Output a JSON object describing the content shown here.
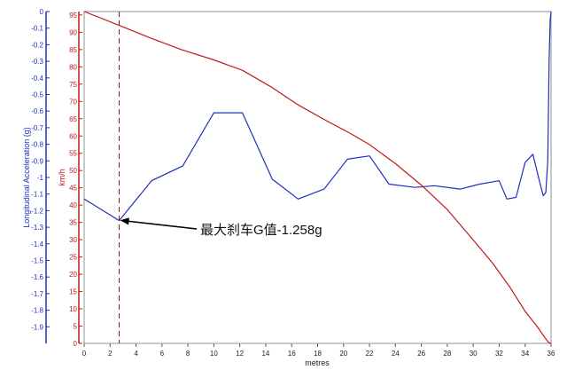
{
  "chart_data": {
    "type": "line",
    "xlabel": "metres",
    "xlim": [
      0,
      36
    ],
    "x_ticks": [
      "0",
      "2",
      "4",
      "6",
      "8",
      "10",
      "12",
      "14",
      "16",
      "18",
      "20",
      "22",
      "24",
      "26",
      "28",
      "30",
      "32",
      "34",
      "36"
    ],
    "y_left": {
      "label": "Longitudinal Acceleration (g)",
      "lim": [
        -2.0,
        0
      ],
      "ticks": [
        "0",
        "-0.1",
        "-0.2",
        "-0.3",
        "-0.4",
        "-0.5",
        "-0.6",
        "-0.7",
        "-0.8",
        "-0.9",
        "-1",
        "-1.1",
        "-1.2",
        "-1.3",
        "-1.4",
        "-1.5",
        "-1.6",
        "-1.7",
        "-1.8",
        "-1.9"
      ],
      "color": "#1f2fbf"
    },
    "y_right": {
      "label": "km/h",
      "lim": [
        0,
        96
      ],
      "ticks": [
        "95",
        "90",
        "85",
        "80",
        "75",
        "70",
        "65",
        "60",
        "55",
        "50",
        "45",
        "40",
        "35",
        "30",
        "25",
        "20",
        "15",
        "10",
        "5",
        "0"
      ],
      "color": "#c0191b"
    },
    "series": [
      {
        "axis": "left",
        "color": "#1f2fbf",
        "x": [
          0,
          2.7,
          5.2,
          7.6,
          10.0,
          12.2,
          14.5,
          16.5,
          18.5,
          20.3,
          22.0,
          23.5,
          25.5,
          27.0,
          29.0,
          30.5,
          32.0,
          32.6,
          33.3,
          34.0,
          34.6,
          35.1,
          35.4,
          35.6,
          35.75,
          35.85,
          35.93,
          36.0
        ],
        "y": [
          -1.13,
          -1.26,
          -1.02,
          -0.93,
          -0.61,
          -0.61,
          -1.01,
          -1.13,
          -1.07,
          -0.89,
          -0.87,
          -1.04,
          -1.06,
          -1.05,
          -1.07,
          -1.04,
          -1.02,
          -1.13,
          -1.12,
          -0.91,
          -0.86,
          -1.02,
          -1.11,
          -1.09,
          -0.9,
          -0.3,
          -0.05,
          0
        ]
      },
      {
        "axis": "right",
        "color": "#c0191b",
        "x": [
          0,
          2.7,
          5,
          7.5,
          10,
          12.2,
          14.5,
          16.5,
          18.5,
          20.5,
          22,
          24,
          26,
          28,
          30,
          31.5,
          32.8,
          34,
          35,
          35.5,
          35.8,
          36
        ],
        "y": [
          96,
          92,
          88.5,
          85,
          82,
          79,
          74,
          69,
          64.8,
          60.8,
          57.5,
          52,
          45.8,
          38.7,
          29.9,
          23.2,
          16.4,
          9.3,
          4.5,
          1.8,
          0.3,
          0
        ]
      }
    ],
    "marker": {
      "x": 2.7
    },
    "annotation": {
      "text": "最大刹车G值-1.258g",
      "x": 2.7,
      "y": -1.258
    },
    "grid": false
  }
}
